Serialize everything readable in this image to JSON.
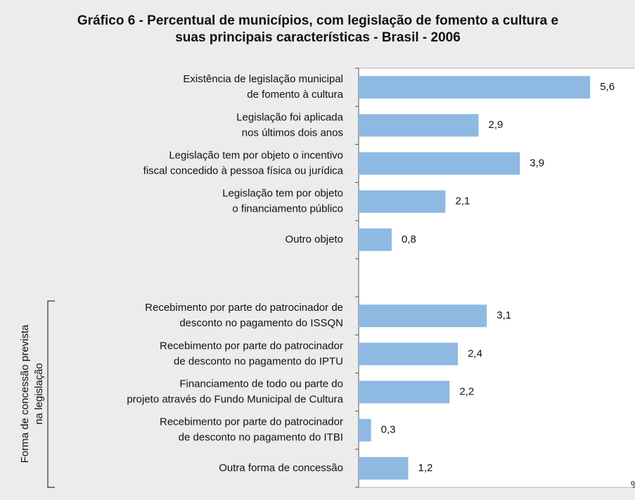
{
  "chart_data": {
    "type": "barh",
    "title": "Gráfico 6 - Percentual de municípios, com legislação de fomento a cultura e\nsuas principais características - Brasil - 2006",
    "categories": [
      "Existência de legislação municipal\nde fomento à cultura",
      "Legislação foi aplicada\nnos últimos dois anos",
      "Legislação tem por objeto o incentivo\nfiscal concedido à pessoa física ou jurídica",
      "Legislação tem por objeto\no financiamento público",
      "Outro objeto",
      null,
      "Recebimento por parte do patrocinador de\ndesconto no pagamento do ISSQN",
      "Recebimento por parte do patrocinador\nde desconto no pagamento do IPTU",
      "Financiamento de todo ou parte do\nprojeto através do Fundo Municipal de Cultura",
      "Recebimento por parte do patrocinador\nde desconto no pagamento do ITBI",
      "Outra forma de concessão"
    ],
    "values": [
      5.6,
      2.9,
      3.9,
      2.1,
      0.8,
      null,
      3.1,
      2.4,
      2.2,
      0.3,
      1.2
    ],
    "value_labels": [
      "5,6",
      "2,9",
      "3,9",
      "2,1",
      "0,8",
      null,
      "3,1",
      "2,4",
      "2,2",
      "0,3",
      "1,2"
    ],
    "group_label": "Forma de concessão prevista\nna legislação",
    "x_unit": "%",
    "color": "#8db9e3",
    "xlim": [
      0,
      6.6
    ]
  }
}
